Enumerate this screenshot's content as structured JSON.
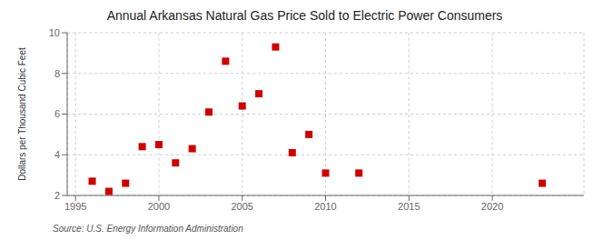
{
  "chart_data": {
    "type": "scatter",
    "title": "Annual Arkansas Natural Gas Price Sold to Electric Power Consumers",
    "ylabel": "Dollars per Thousand Cubic Feet",
    "source": "Source: U.S. Energy Information Administration",
    "x": [
      1996,
      1997,
      1998,
      1999,
      2000,
      2001,
      2002,
      2003,
      2004,
      2005,
      2006,
      2007,
      2008,
      2009,
      2010,
      2012,
      2023
    ],
    "values": [
      2.7,
      2.2,
      2.6,
      4.4,
      4.5,
      3.6,
      4.3,
      6.1,
      8.6,
      6.4,
      7.0,
      9.3,
      4.1,
      5.0,
      3.1,
      3.1,
      2.6
    ],
    "color": "#cc0000",
    "marker": "square",
    "xlim": [
      1994.5,
      2025.5
    ],
    "ylim": [
      2,
      10
    ],
    "xticks": [
      1995,
      2000,
      2005,
      2010,
      2015,
      2020
    ],
    "yticks": [
      2,
      4,
      6,
      8,
      10
    ],
    "grid": true
  }
}
